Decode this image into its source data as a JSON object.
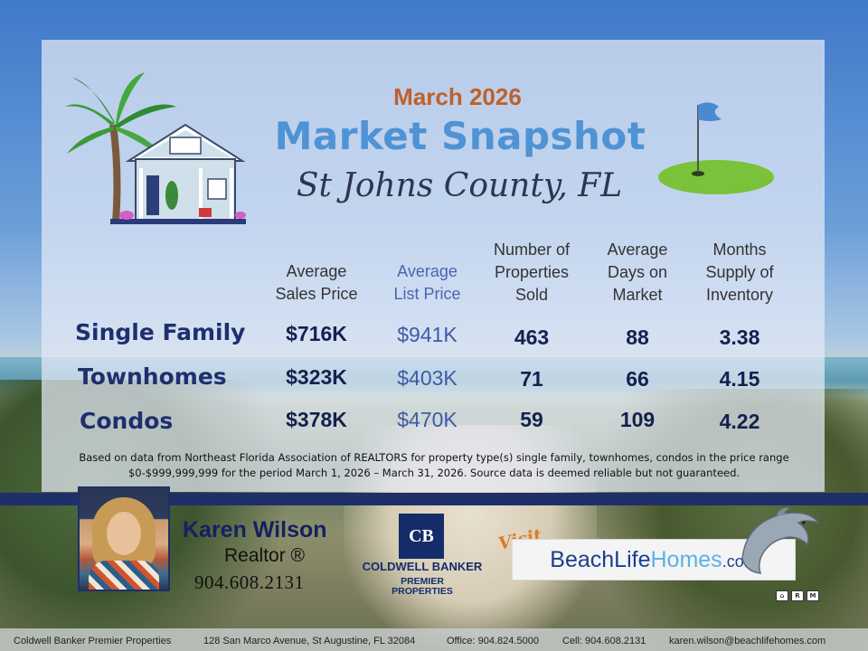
{
  "header": {
    "month": "March 2026",
    "title": "Market Snapshot",
    "location": "St Johns County, FL"
  },
  "table": {
    "columns": [
      {
        "lines": [
          "Average",
          "Sales Price"
        ]
      },
      {
        "lines": [
          "Average",
          "List Price"
        ]
      },
      {
        "lines": [
          "Number of",
          "Properties",
          "Sold"
        ]
      },
      {
        "lines": [
          "Average",
          "Days on",
          "Market"
        ]
      },
      {
        "lines": [
          "Months",
          "Supply of",
          "Inventory"
        ]
      }
    ],
    "rows": [
      {
        "label": "Single Family",
        "values": [
          "$716K",
          "$941K",
          "463",
          "88",
          "3.38"
        ]
      },
      {
        "label": "Townhomes",
        "values": [
          "$323K",
          "$403K",
          "71",
          "66",
          "4.15"
        ]
      },
      {
        "label": "Condos",
        "values": [
          "$378K",
          "$470K",
          "59",
          "109",
          "4.22"
        ]
      }
    ]
  },
  "disclaimer": {
    "line1": "Based on data from Northeast Florida Association of REALTORS for property type(s) single family, townhomes, condos in the price range",
    "line2": "$0-$999,999,999 for the period March 1, 2026 – March 31, 2026.  Source data is deemed reliable but not guaranteed."
  },
  "agent": {
    "name": "Karen Wilson",
    "title": "Realtor ®",
    "phone": "904.608.2131"
  },
  "brokerage": {
    "monogram": "CB",
    "name": "COLDWELL BANKER",
    "sub1": "PREMIER",
    "sub2": "PROPERTIES"
  },
  "website": {
    "visit": "Visit",
    "part1": "BeachLife",
    "part2": "Homes",
    "part3": ".com"
  },
  "footer": {
    "company": "Coldwell Banker Premier Properties",
    "address": "128 San Marco Avenue, St Augustine, FL 32084",
    "office": "Office: 904.824.5000",
    "cell": "Cell: 904.608.2131",
    "email": "karen.wilson@beachlifehomes.com"
  },
  "colors": {
    "accent_orange": "#c0602a",
    "title_blue": "#4f93d4",
    "navy": "#1e2f6a"
  },
  "icons": [
    "palm-house-illustration",
    "golf-flag-icon",
    "dolphin-icon",
    "equal-housing-icon",
    "realtor-icon",
    "mls-icon"
  ]
}
